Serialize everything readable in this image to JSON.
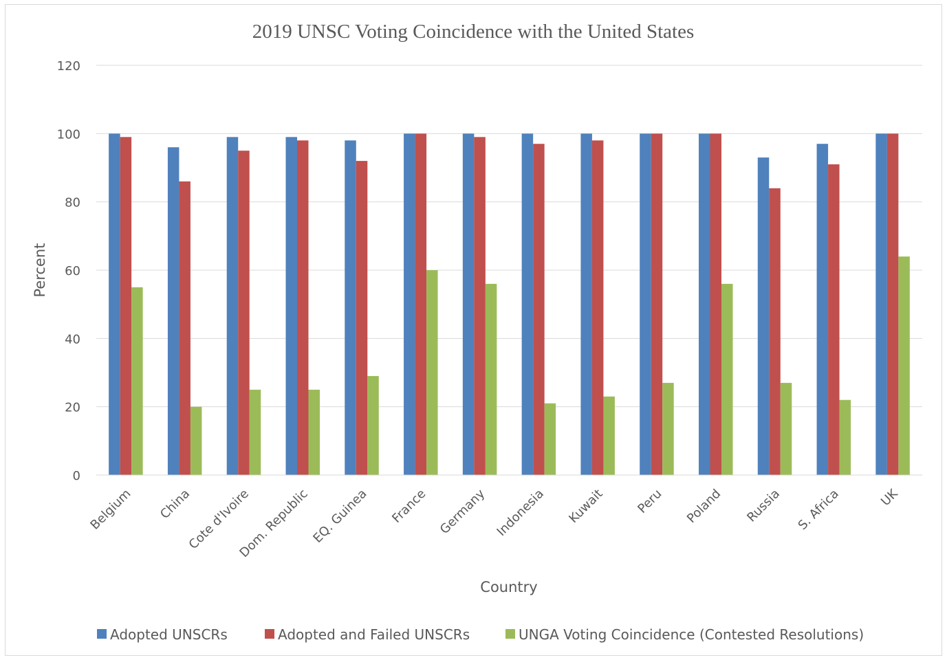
{
  "chart_data": {
    "type": "bar",
    "title": "2019 UNSC Voting Coincidence with the United States",
    "xlabel": "Country",
    "ylabel": "Percent",
    "ylim": [
      0,
      120
    ],
    "yticks": [
      0,
      20,
      40,
      60,
      80,
      100,
      120
    ],
    "grid": true,
    "legend_position": "bottom",
    "categories": [
      "Belgium",
      "China",
      "Cote d'Ivoire",
      "Dom. Republic",
      "EQ. Guinea",
      "France",
      "Germany",
      "Indonesia",
      "Kuwait",
      "Peru",
      "Poland",
      "Russia",
      "S. Africa",
      "UK"
    ],
    "series": [
      {
        "name": "Adopted UNSCRs",
        "color": "#4f81bd",
        "values": [
          100,
          96,
          99,
          99,
          98,
          100,
          100,
          100,
          100,
          100,
          100,
          93,
          97,
          100
        ]
      },
      {
        "name": "Adopted and Failed UNSCRs",
        "color": "#c0504d",
        "values": [
          99,
          86,
          95,
          98,
          92,
          100,
          99,
          97,
          98,
          100,
          100,
          84,
          91,
          100
        ]
      },
      {
        "name": "UNGA Voting Coincidence (Contested Resolutions)",
        "color": "#9bbb59",
        "values": [
          55,
          20,
          25,
          25,
          29,
          60,
          56,
          21,
          23,
          27,
          56,
          27,
          22,
          64
        ]
      }
    ]
  }
}
